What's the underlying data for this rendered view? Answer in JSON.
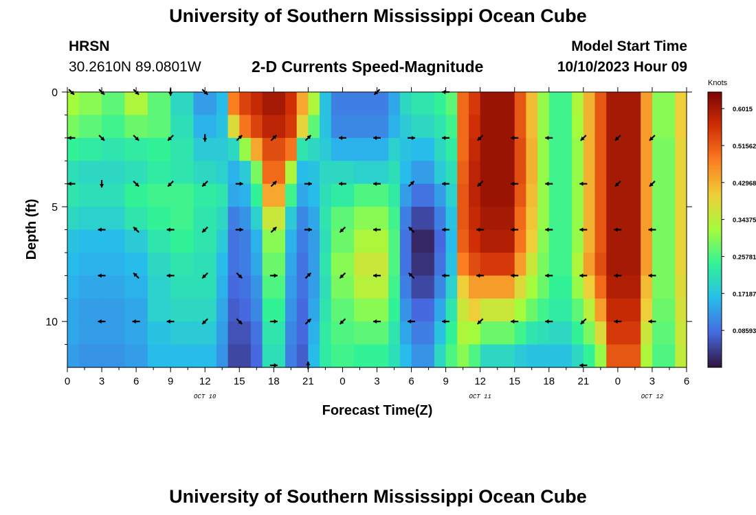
{
  "header": {
    "title": "University of Southern Mississippi Ocean Cube",
    "station_name": "HRSN",
    "station_coords": "30.2610N  89.0801W",
    "plot_title": "2-D Currents Speed-Magnitude",
    "model_label": "Model Start Time",
    "model_time": "10/10/2023 Hour 09"
  },
  "footer": {
    "title": "University of Southern Mississippi Ocean Cube"
  },
  "colors": {
    "colormap": [
      "#30123b",
      "#4669e0",
      "#28bceb",
      "#32f298",
      "#a4fc3c",
      "#eecf3a",
      "#fb7e21",
      "#d02f05",
      "#7a0403"
    ],
    "arrow": "#000000"
  },
  "chart_data": {
    "type": "heatmap",
    "xlabel": "Forecast Time(Z)",
    "ylabel": "Depth (ft)",
    "x_tick_labels": [
      "0",
      "3",
      "6",
      "9",
      "12",
      "15",
      "18",
      "21",
      "0",
      "3",
      "6",
      "9",
      "12",
      "15",
      "18",
      "21",
      "0",
      "3",
      "6"
    ],
    "x_range_hours": [
      0,
      54
    ],
    "date_labels": [
      {
        "hour": 12,
        "text": "OCT 10"
      },
      {
        "hour": 36,
        "text": "OCT 11"
      },
      {
        "hour": 51,
        "text": "OCT 12"
      }
    ],
    "y_ticks": [
      0,
      5,
      10
    ],
    "y_range": [
      0,
      12
    ],
    "y_inverted": true,
    "depths": [
      0,
      1,
      2,
      3,
      4,
      5,
      6,
      7,
      8,
      9,
      10,
      11,
      12
    ],
    "colorbar": {
      "unit": "Knots",
      "min": 0.0,
      "max": 0.64,
      "tick_values": [
        0.08593,
        0.17187,
        0.25781,
        0.34375,
        0.42968,
        0.51562,
        0.6015
      ],
      "tick_labels": [
        "0.08593",
        "0.17187",
        "0.25781",
        "0.34375",
        "0.42968",
        "0.51562",
        "0.6015"
      ]
    },
    "speed_columns": [
      {
        "hours": [
          0,
          1
        ],
        "values": [
          0.32,
          0.29,
          0.24,
          0.21,
          0.22,
          0.2,
          0.17,
          0.16,
          0.15,
          0.14,
          0.14,
          0.13
        ]
      },
      {
        "hours": [
          1,
          3
        ],
        "values": [
          0.3,
          0.27,
          0.23,
          0.2,
          0.21,
          0.19,
          0.16,
          0.15,
          0.14,
          0.13,
          0.13,
          0.12
        ]
      },
      {
        "hours": [
          3,
          5
        ],
        "values": [
          0.27,
          0.25,
          0.22,
          0.2,
          0.21,
          0.19,
          0.16,
          0.15,
          0.14,
          0.13,
          0.13,
          0.12
        ]
      },
      {
        "hours": [
          5,
          7
        ],
        "values": [
          0.33,
          0.28,
          0.23,
          0.21,
          0.24,
          0.22,
          0.18,
          0.16,
          0.15,
          0.14,
          0.14,
          0.13
        ]
      },
      {
        "hours": [
          7,
          9
        ],
        "values": [
          0.27,
          0.27,
          0.24,
          0.23,
          0.25,
          0.24,
          0.22,
          0.2,
          0.19,
          0.19,
          0.17,
          0.16
        ]
      },
      {
        "hours": [
          9,
          11
        ],
        "values": [
          0.2,
          0.21,
          0.22,
          0.22,
          0.25,
          0.25,
          0.24,
          0.22,
          0.21,
          0.2,
          0.18,
          0.16
        ]
      },
      {
        "hours": [
          11,
          13
        ],
        "values": [
          0.13,
          0.15,
          0.18,
          0.2,
          0.23,
          0.22,
          0.22,
          0.21,
          0.21,
          0.2,
          0.18,
          0.16
        ]
      },
      {
        "hours": [
          13,
          14
        ],
        "values": [
          0.16,
          0.17,
          0.18,
          0.19,
          0.22,
          0.2,
          0.18,
          0.16,
          0.15,
          0.14,
          0.13,
          0.12
        ]
      },
      {
        "hours": [
          14,
          15
        ],
        "values": [
          0.48,
          0.38,
          0.2,
          0.15,
          0.14,
          0.1,
          0.09,
          0.09,
          0.08,
          0.07,
          0.06,
          0.05
        ]
      },
      {
        "hours": [
          15,
          16
        ],
        "values": [
          0.54,
          0.49,
          0.31,
          0.18,
          0.15,
          0.12,
          0.1,
          0.1,
          0.09,
          0.08,
          0.06,
          0.05
        ]
      },
      {
        "hours": [
          16,
          17
        ],
        "values": [
          0.57,
          0.54,
          0.44,
          0.29,
          0.24,
          0.19,
          0.15,
          0.14,
          0.12,
          0.11,
          0.09,
          0.08
        ]
      },
      {
        "hours": [
          17,
          19
        ],
        "values": [
          0.6,
          0.58,
          0.53,
          0.5,
          0.44,
          0.36,
          0.3,
          0.28,
          0.26,
          0.24,
          0.22,
          0.21
        ]
      },
      {
        "hours": [
          19,
          20
        ],
        "values": [
          0.56,
          0.55,
          0.49,
          0.33,
          0.25,
          0.18,
          0.15,
          0.14,
          0.13,
          0.12,
          0.11,
          0.1
        ]
      },
      {
        "hours": [
          20,
          21
        ],
        "values": [
          0.44,
          0.39,
          0.22,
          0.16,
          0.14,
          0.11,
          0.1,
          0.09,
          0.09,
          0.08,
          0.08,
          0.07
        ]
      },
      {
        "hours": [
          21,
          22
        ],
        "values": [
          0.33,
          0.27,
          0.2,
          0.17,
          0.16,
          0.14,
          0.13,
          0.13,
          0.13,
          0.14,
          0.15,
          0.16
        ]
      },
      {
        "hours": [
          22,
          23
        ],
        "values": [
          0.17,
          0.17,
          0.18,
          0.2,
          0.21,
          0.22,
          0.21,
          0.22,
          0.21,
          0.22,
          0.23,
          0.23
        ]
      },
      {
        "hours": [
          23,
          25
        ],
        "values": [
          0.1,
          0.11,
          0.15,
          0.2,
          0.23,
          0.27,
          0.28,
          0.3,
          0.29,
          0.27,
          0.26,
          0.25
        ]
      },
      {
        "hours": [
          25,
          28
        ],
        "values": [
          0.1,
          0.11,
          0.15,
          0.19,
          0.26,
          0.3,
          0.33,
          0.36,
          0.34,
          0.3,
          0.27,
          0.24
        ]
      },
      {
        "hours": [
          28,
          29
        ],
        "values": [
          0.14,
          0.15,
          0.19,
          0.21,
          0.23,
          0.25,
          0.26,
          0.26,
          0.25,
          0.24,
          0.22,
          0.21
        ]
      },
      {
        "hours": [
          29,
          30
        ],
        "values": [
          0.2,
          0.18,
          0.17,
          0.16,
          0.13,
          0.1,
          0.09,
          0.09,
          0.1,
          0.12,
          0.14,
          0.16
        ]
      },
      {
        "hours": [
          30,
          32
        ],
        "values": [
          0.22,
          0.2,
          0.16,
          0.13,
          0.09,
          0.05,
          0.02,
          0.03,
          0.05,
          0.08,
          0.1,
          0.12
        ]
      },
      {
        "hours": [
          32,
          33
        ],
        "values": [
          0.24,
          0.22,
          0.2,
          0.18,
          0.13,
          0.1,
          0.08,
          0.09,
          0.11,
          0.14,
          0.17,
          0.2
        ]
      },
      {
        "hours": [
          33,
          34
        ],
        "values": [
          0.27,
          0.25,
          0.23,
          0.21,
          0.19,
          0.17,
          0.16,
          0.17,
          0.19,
          0.22,
          0.24,
          0.26
        ]
      },
      {
        "hours": [
          34,
          35
        ],
        "values": [
          0.5,
          0.5,
          0.5,
          0.51,
          0.52,
          0.52,
          0.51,
          0.48,
          0.4,
          0.36,
          0.33,
          0.3
        ]
      },
      {
        "hours": [
          35,
          36
        ],
        "values": [
          0.55,
          0.56,
          0.57,
          0.58,
          0.58,
          0.57,
          0.56,
          0.53,
          0.45,
          0.4,
          0.32,
          0.26
        ]
      },
      {
        "hours": [
          36,
          39
        ],
        "values": [
          0.61,
          0.61,
          0.61,
          0.61,
          0.61,
          0.6,
          0.59,
          0.55,
          0.45,
          0.36,
          0.28,
          0.2
        ]
      },
      {
        "hours": [
          39,
          40
        ],
        "values": [
          0.52,
          0.52,
          0.53,
          0.53,
          0.52,
          0.5,
          0.49,
          0.45,
          0.38,
          0.32,
          0.25,
          0.18
        ]
      },
      {
        "hours": [
          40,
          41
        ],
        "values": [
          0.42,
          0.42,
          0.43,
          0.43,
          0.42,
          0.41,
          0.4,
          0.36,
          0.32,
          0.28,
          0.22,
          0.17
        ]
      },
      {
        "hours": [
          41,
          42
        ],
        "values": [
          0.31,
          0.31,
          0.31,
          0.31,
          0.31,
          0.31,
          0.3,
          0.29,
          0.28,
          0.25,
          0.21,
          0.17
        ]
      },
      {
        "hours": [
          42,
          44
        ],
        "values": [
          0.25,
          0.25,
          0.25,
          0.25,
          0.25,
          0.25,
          0.25,
          0.25,
          0.24,
          0.23,
          0.2,
          0.17
        ]
      },
      {
        "hours": [
          44,
          45
        ],
        "values": [
          0.33,
          0.32,
          0.31,
          0.31,
          0.31,
          0.31,
          0.31,
          0.33,
          0.31,
          0.27,
          0.24,
          0.2
        ]
      },
      {
        "hours": [
          45,
          46
        ],
        "values": [
          0.43,
          0.43,
          0.43,
          0.43,
          0.43,
          0.43,
          0.43,
          0.45,
          0.4,
          0.34,
          0.29,
          0.24
        ]
      },
      {
        "hours": [
          46,
          47
        ],
        "values": [
          0.52,
          0.52,
          0.52,
          0.52,
          0.52,
          0.52,
          0.52,
          0.53,
          0.5,
          0.45,
          0.38,
          0.31
        ]
      },
      {
        "hours": [
          47,
          50
        ],
        "values": [
          0.6,
          0.6,
          0.6,
          0.6,
          0.6,
          0.6,
          0.6,
          0.6,
          0.59,
          0.57,
          0.55,
          0.52
        ]
      },
      {
        "hours": [
          50,
          51
        ],
        "values": [
          0.45,
          0.45,
          0.45,
          0.45,
          0.45,
          0.45,
          0.45,
          0.45,
          0.42,
          0.4,
          0.36,
          0.33
        ]
      },
      {
        "hours": [
          51,
          53
        ],
        "values": [
          0.3,
          0.3,
          0.29,
          0.29,
          0.29,
          0.29,
          0.29,
          0.29,
          0.29,
          0.28,
          0.27,
          0.26
        ]
      },
      {
        "hours": [
          53,
          54
        ],
        "values": [
          0.4,
          0.4,
          0.39,
          0.39,
          0.39,
          0.39,
          0.39,
          0.39,
          0.38,
          0.37,
          0.36,
          0.35
        ]
      }
    ],
    "vector_depths": [
      0,
      2,
      4,
      6,
      8,
      10,
      12
    ],
    "vectors": [
      {
        "hour": 0,
        "dirs": [
          "SE",
          "W",
          "W",
          null,
          null,
          null,
          null
        ]
      },
      {
        "hour": 3,
        "dirs": [
          "SE",
          "SE",
          "S",
          "W",
          "W",
          "W",
          null
        ]
      },
      {
        "hour": 6,
        "dirs": [
          "SE",
          "SE",
          "SE",
          "NW",
          "NW",
          "W",
          null
        ]
      },
      {
        "hour": 9,
        "dirs": [
          "S",
          "SW",
          "SW",
          "W",
          "W",
          "W",
          null
        ]
      },
      {
        "hour": 12,
        "dirs": [
          "SE",
          "S",
          "SW",
          "SW",
          "SW",
          "SW",
          null
        ]
      },
      {
        "hour": 15,
        "dirs": [
          null,
          "NE",
          "E",
          "E",
          "SE",
          "SE",
          null
        ]
      },
      {
        "hour": 18,
        "dirs": [
          null,
          "NE",
          "NE",
          "NE",
          "E",
          "E",
          "E"
        ]
      },
      {
        "hour": 21,
        "dirs": [
          null,
          "NE",
          "E",
          "E",
          "NE",
          "NE",
          "N"
        ]
      },
      {
        "hour": 24,
        "dirs": [
          null,
          "W",
          "W",
          "SW",
          "SW",
          "SW",
          null
        ]
      },
      {
        "hour": 27,
        "dirs": [
          "SW",
          "W",
          "W",
          "W",
          "W",
          "W",
          null
        ]
      },
      {
        "hour": 30,
        "dirs": [
          null,
          "E",
          "NE",
          "NW",
          "NW",
          "W",
          null
        ]
      },
      {
        "hour": 33,
        "dirs": [
          "W",
          "W",
          "W",
          "W",
          "W",
          "W",
          null
        ]
      },
      {
        "hour": 36,
        "dirs": [
          null,
          "SW",
          "SW",
          "W",
          "W",
          "SW",
          null
        ]
      },
      {
        "hour": 39,
        "dirs": [
          null,
          "W",
          "W",
          "W",
          "W",
          "W",
          null
        ]
      },
      {
        "hour": 42,
        "dirs": [
          null,
          "W",
          "W",
          "W",
          "W",
          "W",
          null
        ]
      },
      {
        "hour": 45,
        "dirs": [
          null,
          "SW",
          "W",
          "W",
          "W",
          "SW",
          "W"
        ]
      },
      {
        "hour": 48,
        "dirs": [
          null,
          "SW",
          "SW",
          "W",
          "W",
          "W",
          null
        ]
      },
      {
        "hour": 51,
        "dirs": [
          null,
          "SW",
          "SW",
          "W",
          "W",
          "W",
          null
        ]
      }
    ]
  }
}
